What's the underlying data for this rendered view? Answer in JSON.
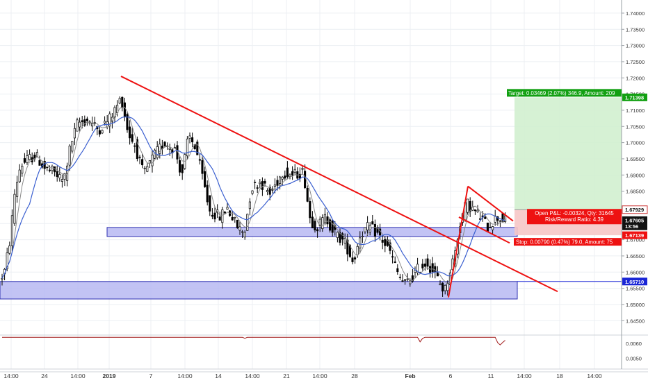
{
  "chart_data": {
    "type": "candlestick",
    "title": "",
    "grid": true,
    "colors": {
      "up": "#ffffff",
      "down": "#000000",
      "wick": "#000000",
      "ma_fast": "#888888",
      "ma_slow": "#3a5fd0",
      "trendline": "#ee1111",
      "zone_fill": "#b7b9f2",
      "zone_stroke": "#2c2fb0",
      "target_fill": "#d1efcf",
      "stop_fill": "#f6c6c6",
      "target_label_bg": "#12a012",
      "stop_label_bg": "#ee1111",
      "current_price_bg": "#111111",
      "support_line_bg": "#1a26d6",
      "oscillator": "#a01818"
    },
    "price_axis": {
      "ylim": [
        1.6412,
        1.7432
      ],
      "tick_labels": [
        "1.74000",
        "1.73500",
        "1.73000",
        "1.72500",
        "1.72000",
        "1.71500",
        "1.71000",
        "1.70500",
        "1.70000",
        "1.69500",
        "1.69000",
        "1.68500",
        "1.68000",
        "1.67500",
        "1.67000",
        "1.66500",
        "1.66000",
        "1.65500",
        "1.65000",
        "1.64500"
      ],
      "tick_values": [
        1.74,
        1.735,
        1.73,
        1.725,
        1.72,
        1.715,
        1.71,
        1.705,
        1.7,
        1.695,
        1.69,
        1.685,
        1.68,
        1.675,
        1.67,
        1.665,
        1.66,
        1.655,
        1.65,
        1.645
      ]
    },
    "time_axis": {
      "labels": [
        "14:00",
        "24",
        "14:00",
        "2019",
        "7",
        "14:00",
        "14",
        "14:00",
        "21",
        "14:00",
        "28",
        "Feb",
        "6",
        "11",
        "14:00",
        "18",
        "14:00"
      ],
      "positions": [
        16,
        64,
        112,
        157,
        217,
        266,
        314,
        363,
        412,
        460,
        510,
        590,
        648,
        706,
        754,
        805,
        855
      ]
    },
    "price_tags": [
      {
        "label": "1.71398",
        "value": 1.71398,
        "kind": "target"
      },
      {
        "label": "1.67929",
        "value": 1.67929,
        "kind": "entry"
      },
      {
        "label": "1.67605",
        "value": 1.67605,
        "kind": "current"
      },
      {
        "label": "13:56",
        "value": 1.67415,
        "kind": "countdown"
      },
      {
        "label": "1.67139",
        "value": 1.67139,
        "kind": "stop"
      },
      {
        "label": "1.65710",
        "value": 1.6571,
        "kind": "support"
      }
    ],
    "position_labels": {
      "target": "Target: 0.03469 (2.07%) 346.9, Amount: 209",
      "open_pnl": "Open P&L: -0.00324, Qty: 31645",
      "risk_reward": "Risk/Reward Ratio: 4.39",
      "stop": "Stop: 0.00790 (0.47%) 79.0, Amount: 75"
    },
    "oscillator": {
      "tick_labels": [
        "0.0060",
        "0.0050"
      ],
      "tick_values": [
        0.006,
        0.005
      ],
      "ylim": [
        0.0043,
        0.0065
      ]
    }
  }
}
